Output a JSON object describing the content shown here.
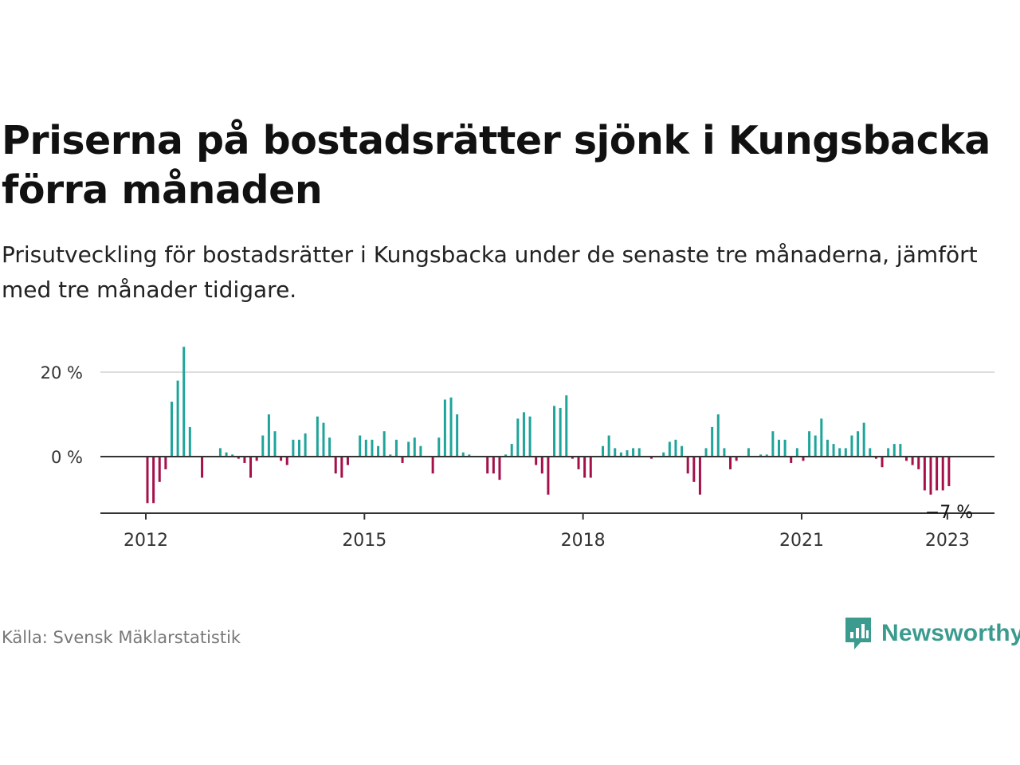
{
  "title": "Priserna på bostadsrätter sjönk i Kungsbacka förra månaden",
  "subtitle": "Prisutveckling för bostadsrätter i Kungsbacka under de senaste tre månaderna, jämfört med tre månader tidigare.",
  "source": "Källa: Svensk Mäklarstatistik",
  "brand": "Newsworthy",
  "colors": {
    "positive": "#1fa49a",
    "negative": "#a5104a",
    "brand": "#3b9b8f",
    "grid": "#dddddd",
    "axis": "#333333"
  },
  "chart_data": {
    "type": "bar",
    "start": "2012-01",
    "x_ticks": [
      "2012",
      "2015",
      "2018",
      "2021",
      "2023"
    ],
    "y_ticks": [
      {
        "value": 20,
        "label": "20 %"
      },
      {
        "value": 0,
        "label": "0 %"
      }
    ],
    "ylim": [
      -13,
      26
    ],
    "grid": true,
    "values": [
      -11,
      -11,
      -6,
      -3,
      13,
      18,
      26,
      7,
      0,
      -5,
      0,
      0,
      2,
      1,
      0.5,
      -0.5,
      -1.5,
      -5,
      -1,
      5,
      10,
      6,
      -1,
      -2,
      4,
      4,
      5.5,
      0,
      9.5,
      8,
      4.5,
      -4,
      -5,
      -2,
      0,
      5,
      4,
      4,
      2.5,
      6,
      0.5,
      4,
      -1.5,
      3.5,
      4.5,
      2.5,
      0,
      -4,
      4.5,
      13.5,
      14,
      10,
      1,
      0.5,
      0,
      0,
      -4,
      -4,
      -5.5,
      0.5,
      3,
      9,
      10.5,
      9.5,
      -2,
      -4,
      -9,
      12,
      11.5,
      14.5,
      -0.5,
      -3,
      -5,
      -5,
      0,
      2.5,
      5,
      2,
      1,
      1.5,
      2,
      2,
      0,
      -0.5,
      0,
      1,
      3.5,
      4,
      2.5,
      -4,
      -6,
      -9,
      2,
      7,
      10,
      2,
      -3,
      -1,
      0,
      2,
      0,
      0.5,
      0.5,
      6,
      4,
      4,
      -1.5,
      2,
      -1,
      6,
      5,
      9,
      4,
      3,
      2,
      2,
      5,
      6,
      8,
      2,
      -0.5,
      -2.5,
      2,
      3,
      3,
      -1,
      -2,
      -3,
      -8,
      -9,
      -8,
      -8,
      -7
    ],
    "last_label": "−7 %"
  }
}
